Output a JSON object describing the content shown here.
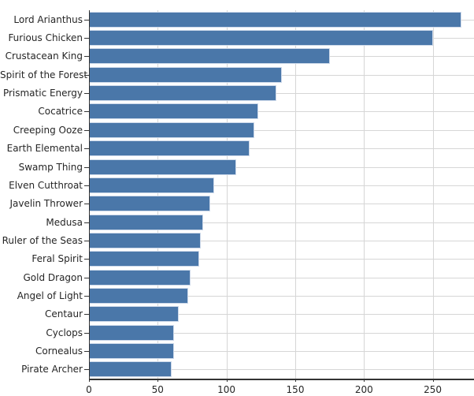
{
  "chart_data": {
    "type": "bar",
    "orientation": "horizontal",
    "title": "",
    "xlabel": "",
    "ylabel": "",
    "categories": [
      "Lord Arianthus",
      "Furious Chicken",
      "Crustacean King",
      "Spirit of the Forest",
      "Prismatic Energy",
      "Cocatrice",
      "Creeping Ooze",
      "Earth Elemental",
      "Swamp Thing",
      "Elven Cutthroat",
      "Javelin Thrower",
      "Medusa",
      "Ruler of the Seas",
      "Feral Spirit",
      "Gold Dragon",
      "Angel of Light",
      "Centaur",
      "Cyclops",
      "Cornealus",
      "Pirate Archer"
    ],
    "values": [
      271,
      250,
      175,
      140,
      136,
      123,
      120,
      117,
      107,
      91,
      88,
      83,
      81,
      80,
      74,
      72,
      65,
      62,
      62,
      60
    ],
    "xlim": [
      0,
      280
    ],
    "xticks": [
      0,
      50,
      100,
      150,
      200,
      250
    ],
    "grid": true,
    "legend": false,
    "bar_color": "#4a77a9",
    "bar_edge_color": "#cdd9ea",
    "gridline_color": "#d6d6d6",
    "spine_color": "#333333",
    "tick_color": "#333333",
    "text_color": "#262626",
    "background_color": "#ffffff"
  }
}
